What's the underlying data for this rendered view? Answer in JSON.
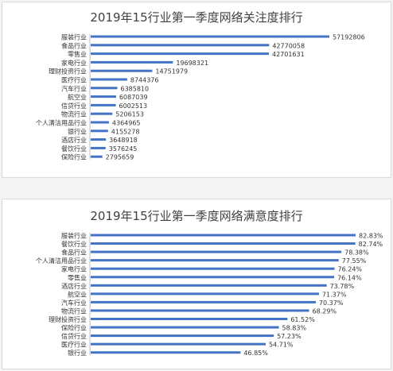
{
  "colors": {
    "bar": "#4472c4",
    "text": "#404040",
    "label": "#333333"
  },
  "chart_data": [
    {
      "type": "bar",
      "orientation": "horizontal",
      "title": "2019年15行业第一季度网络关注度排行",
      "categories": [
        "服装行业",
        "食品行业",
        "零售业",
        "家电行业",
        "理财投资行业",
        "医疗行业",
        "汽车行业",
        "航空业",
        "信贷行业",
        "物流行业",
        "个人清洁用品行业",
        "银行业",
        "酒店行业",
        "餐饮行业",
        "保险行业"
      ],
      "values": [
        57192806,
        42770058,
        42701631,
        19698321,
        14751979,
        8744376,
        6385810,
        6087039,
        6002513,
        5206153,
        4364965,
        4155278,
        3648918,
        3576245,
        2795659
      ],
      "labels": [
        "57192806",
        "42770058",
        "42701631",
        "19698321",
        "14751979",
        "8744376",
        "6385810",
        "6087039",
        "6002513",
        "5206153",
        "4364965",
        "4155278",
        "3648918",
        "3576245",
        "2795659"
      ],
      "xlim": [
        0,
        57192806
      ],
      "legend": "none",
      "grid": false
    },
    {
      "type": "bar",
      "orientation": "horizontal",
      "title": "2019年15行业第一季度网络满意度排行",
      "categories": [
        "服装行业",
        "餐饮行业",
        "食品行业",
        "个人清洁用品行业",
        "家电行业",
        "零售业",
        "酒店行业",
        "航空业",
        "汽车行业",
        "物流行业",
        "理财投资行业",
        "保险行业",
        "信贷行业",
        "医疗行业",
        "银行业"
      ],
      "values": [
        82.83,
        82.74,
        78.38,
        77.55,
        76.24,
        76.14,
        73.78,
        71.37,
        70.37,
        68.29,
        61.52,
        58.83,
        57.23,
        54.71,
        46.85
      ],
      "labels": [
        "82.83%",
        "82.74%",
        "78.38%",
        "77.55%",
        "76.24%",
        "76.14%",
        "73.78%",
        "71.37%",
        "70.37%",
        "68.29%",
        "61.52%",
        "58.83%",
        "57.23%",
        "54.71%",
        "46.85%"
      ],
      "xlim": [
        0,
        82.83
      ],
      "legend": "none",
      "grid": false
    }
  ]
}
